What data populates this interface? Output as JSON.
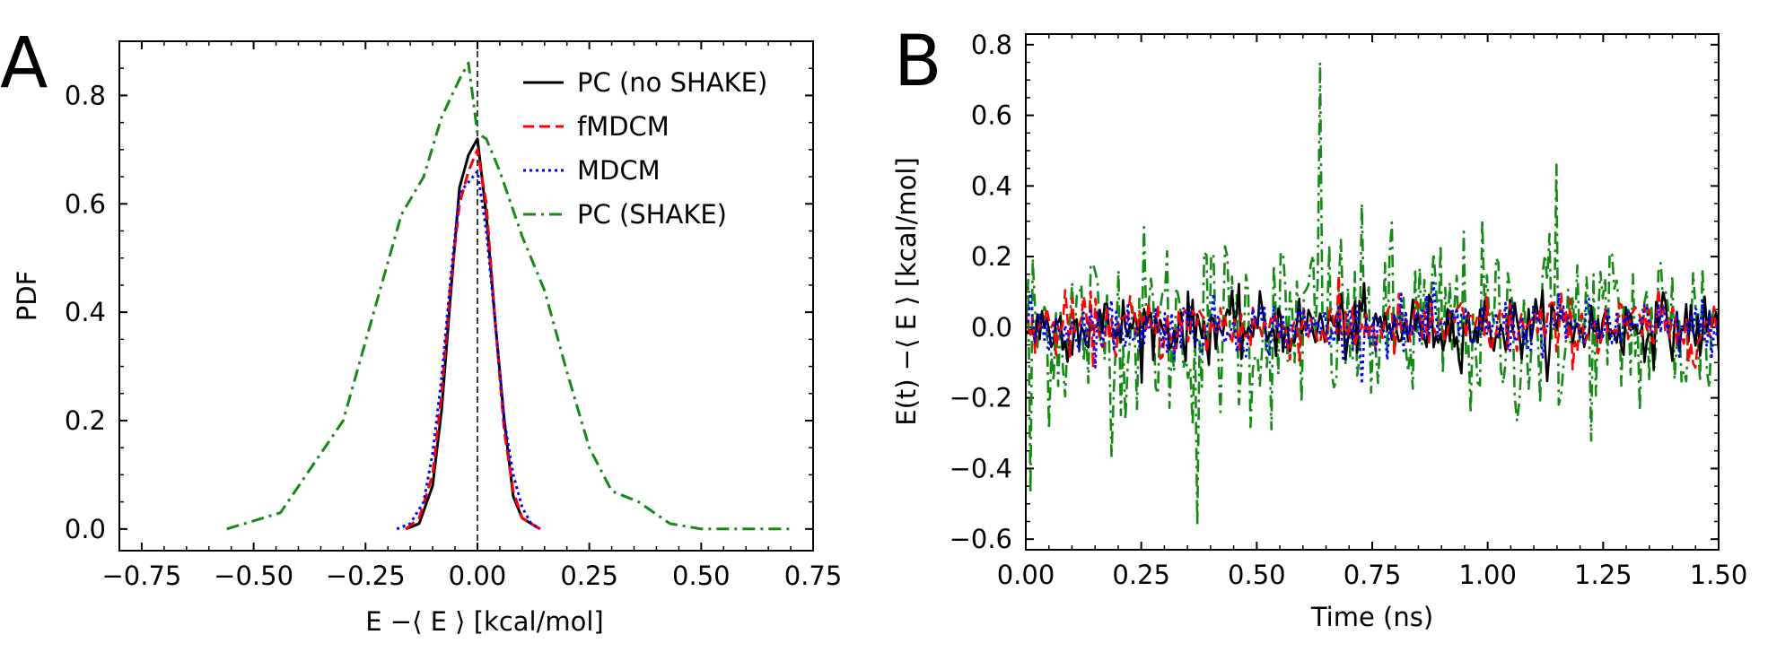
{
  "figure": {
    "panels": [
      {
        "label": "A"
      },
      {
        "label": "B"
      }
    ]
  },
  "chart_data": [
    {
      "type": "line",
      "panel": "A",
      "xlabel": "E −⟨ E ⟩ [kcal/mol]",
      "ylabel": "PDF",
      "xlim": [
        -0.8,
        0.75
      ],
      "ylim": [
        -0.04,
        0.9
      ],
      "xticks": [
        -0.75,
        -0.5,
        -0.25,
        0.0,
        0.25,
        0.5,
        0.75
      ],
      "xtick_labels": [
        "−0.75",
        "−0.50",
        "−0.25",
        "0.00",
        "0.25",
        "0.50",
        "0.75"
      ],
      "yticks": [
        0.0,
        0.2,
        0.4,
        0.6,
        0.8
      ],
      "ytick_labels": [
        "0.0",
        "0.2",
        "0.4",
        "0.6",
        "0.8"
      ],
      "reference_line_x": 0.0,
      "legend_position": "top-right",
      "series": [
        {
          "name": "PC (no SHAKE)",
          "color": "#000000",
          "dash": "solid",
          "x": [
            -0.16,
            -0.13,
            -0.1,
            -0.08,
            -0.06,
            -0.04,
            -0.02,
            0.0,
            0.02,
            0.04,
            0.06,
            0.08,
            0.1,
            0.12,
            0.14
          ],
          "y": [
            0.0,
            0.01,
            0.08,
            0.22,
            0.43,
            0.63,
            0.69,
            0.72,
            0.58,
            0.38,
            0.2,
            0.06,
            0.02,
            0.01,
            0.0
          ]
        },
        {
          "name": "fMDCM",
          "color": "#ff0000",
          "dash": "dashed",
          "x": [
            -0.16,
            -0.13,
            -0.1,
            -0.08,
            -0.06,
            -0.04,
            -0.02,
            0.0,
            0.02,
            0.04,
            0.06,
            0.08,
            0.1,
            0.12,
            0.14
          ],
          "y": [
            0.0,
            0.02,
            0.1,
            0.25,
            0.45,
            0.6,
            0.66,
            0.7,
            0.6,
            0.38,
            0.18,
            0.07,
            0.02,
            0.01,
            0.0
          ]
        },
        {
          "name": "MDCM",
          "color": "#0000ff",
          "dash": "dotted",
          "x": [
            -0.18,
            -0.15,
            -0.12,
            -0.1,
            -0.08,
            -0.06,
            -0.04,
            -0.02,
            0.0,
            0.02,
            0.04,
            0.06,
            0.08,
            0.1,
            0.12,
            0.14
          ],
          "y": [
            0.0,
            0.01,
            0.05,
            0.14,
            0.28,
            0.46,
            0.62,
            0.64,
            0.66,
            0.55,
            0.38,
            0.2,
            0.1,
            0.04,
            0.01,
            0.0
          ]
        },
        {
          "name": "PC (SHAKE)",
          "color": "#138a12",
          "dash": "dashdot",
          "x": [
            -0.56,
            -0.44,
            -0.3,
            -0.17,
            -0.12,
            -0.08,
            -0.04,
            -0.02,
            0.0,
            0.02,
            0.05,
            0.1,
            0.15,
            0.2,
            0.25,
            0.3,
            0.36,
            0.43,
            0.5,
            0.7
          ],
          "y": [
            0.0,
            0.03,
            0.2,
            0.58,
            0.65,
            0.76,
            0.83,
            0.86,
            0.73,
            0.72,
            0.66,
            0.54,
            0.44,
            0.29,
            0.15,
            0.07,
            0.05,
            0.01,
            0.0,
            0.0
          ]
        }
      ]
    },
    {
      "type": "line",
      "panel": "B",
      "xlabel": "Time (ns)",
      "ylabel": "E(t) −⟨ E ⟩ [kcal/mol]",
      "xlim": [
        0.0,
        1.5
      ],
      "ylim": [
        -0.63,
        0.83
      ],
      "xticks": [
        0.0,
        0.25,
        0.5,
        0.75,
        1.0,
        1.25,
        1.5
      ],
      "xtick_labels": [
        "0.00",
        "0.25",
        "0.50",
        "0.75",
        "1.00",
        "1.25",
        "1.50"
      ],
      "yticks": [
        -0.6,
        -0.4,
        -0.2,
        0.0,
        0.2,
        0.4,
        0.6,
        0.8
      ],
      "ytick_labels": [
        "−0.6",
        "−0.4",
        "−0.2",
        "0.0",
        "0.2",
        "0.4",
        "0.6",
        "0.8"
      ],
      "n_points": 300,
      "series": [
        {
          "name": "PC (SHAKE)",
          "color": "#138a12",
          "dash": "dashdot",
          "std_dev": 0.14,
          "extremes": [
            {
              "t": 0.635,
              "v": 0.75
            },
            {
              "t": 0.37,
              "v": -0.56
            },
            {
              "t": 0.01,
              "v": -0.47
            },
            {
              "t": 1.15,
              "v": 0.46
            }
          ]
        },
        {
          "name": "PC (no SHAKE)",
          "color": "#000000",
          "dash": "solid",
          "std_dev": 0.045
        },
        {
          "name": "fMDCM",
          "color": "#ff0000",
          "dash": "dashed",
          "std_dev": 0.045
        },
        {
          "name": "MDCM",
          "color": "#0000ff",
          "dash": "dotted",
          "std_dev": 0.04
        }
      ]
    }
  ]
}
